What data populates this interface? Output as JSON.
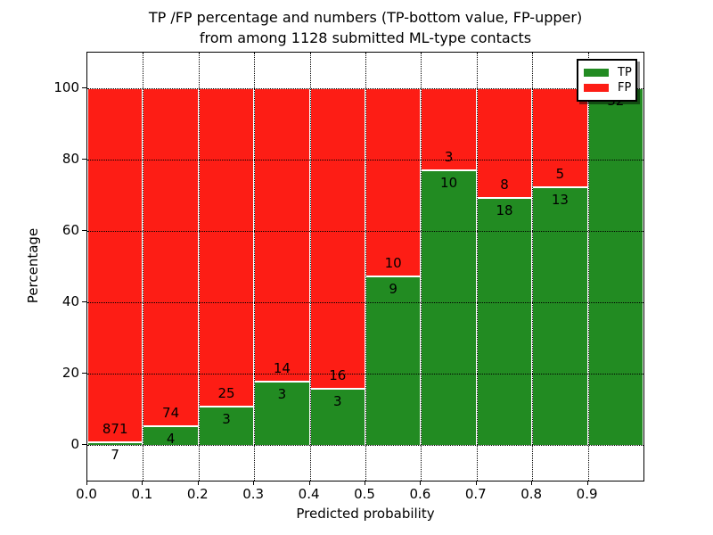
{
  "chart_data": {
    "type": "bar",
    "stacked": true,
    "title_line1": "TP /FP percentage and numbers (TP-bottom value, FP-upper)",
    "title_line2": "from among 1128 submitted ML-type contacts",
    "xlabel": "Predicted probability",
    "ylabel": "Percentage",
    "xlim": [
      0.0,
      1.0
    ],
    "ylim": [
      -10,
      110
    ],
    "grid": true,
    "bin_width": 0.1,
    "bin_starts": [
      0.0,
      0.1,
      0.2,
      0.3,
      0.4,
      0.5,
      0.6,
      0.7,
      0.8,
      0.9
    ],
    "x_tick_labels": [
      "0.0",
      "0.1",
      "0.2",
      "0.3",
      "0.4",
      "0.5",
      "0.6",
      "0.7",
      "0.8",
      "0.9"
    ],
    "y_tick_values": [
      0,
      20,
      40,
      60,
      80,
      100
    ],
    "series": [
      {
        "name": "TP",
        "color": "#228b22",
        "counts": [
          7,
          4,
          3,
          3,
          3,
          9,
          10,
          18,
          13,
          32
        ]
      },
      {
        "name": "FP",
        "color": "#fd1d15",
        "counts": [
          871,
          74,
          25,
          14,
          16,
          10,
          3,
          8,
          5,
          0
        ]
      }
    ],
    "tp_percent": [
      0.8,
      5.1,
      10.7,
      17.6,
      15.8,
      47.4,
      76.9,
      69.2,
      72.2,
      100.0
    ],
    "total_contacts": 1128,
    "legend": {
      "position": "upper right",
      "entries": [
        {
          "label": "TP",
          "color": "#228b22"
        },
        {
          "label": "FP",
          "color": "#fd1d15"
        }
      ]
    }
  }
}
